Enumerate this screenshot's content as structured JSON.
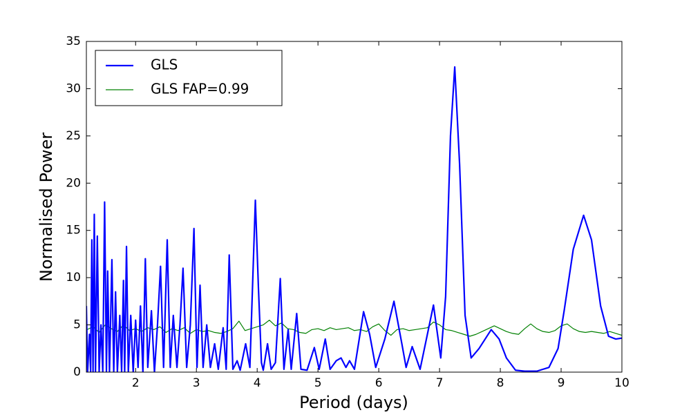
{
  "chart_data": {
    "type": "line",
    "xlabel": "Period (days)",
    "ylabel": "Normalised Power",
    "xlim": [
      1.19,
      10
    ],
    "xticks": [
      2,
      3,
      4,
      5,
      6,
      7,
      8,
      9,
      10
    ],
    "ylim": [
      0,
      35
    ],
    "yticks": [
      0,
      5,
      10,
      15,
      20,
      25,
      30,
      35
    ],
    "legend": "upper left",
    "series": [
      {
        "name": "GLS",
        "color": "#0000ff",
        "width": 2.2,
        "x": [
          1.19,
          1.21,
          1.24,
          1.26,
          1.28,
          1.3,
          1.32,
          1.34,
          1.37,
          1.4,
          1.43,
          1.46,
          1.49,
          1.52,
          1.54,
          1.57,
          1.61,
          1.64,
          1.67,
          1.7,
          1.74,
          1.77,
          1.8,
          1.82,
          1.85,
          1.88,
          1.92,
          1.96,
          2.0,
          2.04,
          2.08,
          2.12,
          2.16,
          2.2,
          2.26,
          2.31,
          2.36,
          2.41,
          2.46,
          2.52,
          2.57,
          2.62,
          2.68,
          2.73,
          2.78,
          2.84,
          2.9,
          2.96,
          3.01,
          3.06,
          3.11,
          3.17,
          3.23,
          3.3,
          3.36,
          3.44,
          3.49,
          3.54,
          3.6,
          3.67,
          3.72,
          3.81,
          3.88,
          3.97,
          4.02,
          4.07,
          4.1,
          4.17,
          4.23,
          4.3,
          4.38,
          4.44,
          4.51,
          4.56,
          4.65,
          4.72,
          4.82,
          4.94,
          5.02,
          5.12,
          5.2,
          5.3,
          5.38,
          5.46,
          5.52,
          5.6,
          5.75,
          5.85,
          5.95,
          6.1,
          6.25,
          6.38,
          6.45,
          6.55,
          6.68,
          6.8,
          6.9,
          7.02,
          7.1,
          7.18,
          7.25,
          7.33,
          7.42,
          7.52,
          7.65,
          7.85,
          7.98,
          8.1,
          8.25,
          8.4,
          8.6,
          8.8,
          8.95,
          9.05,
          9.2,
          9.37,
          9.5,
          9.65,
          9.78,
          9.9,
          10
        ],
        "values": [
          7,
          0,
          4,
          0,
          14,
          0,
          16.7,
          0,
          14.4,
          0,
          5,
          0,
          18,
          0,
          10.7,
          0,
          11.9,
          0,
          8.5,
          0,
          6,
          0,
          9.7,
          0,
          13.3,
          0,
          6,
          0,
          5.5,
          0.5,
          7,
          0,
          12,
          0.5,
          6.5,
          0,
          5,
          11.2,
          0.5,
          14,
          0.5,
          6,
          0.5,
          5,
          11,
          0.5,
          5,
          15.2,
          0.5,
          9.2,
          0.5,
          5,
          0.5,
          3,
          0.3,
          4.7,
          0.3,
          12.4,
          0.3,
          1.2,
          0.2,
          3,
          0.5,
          18.2,
          9,
          1,
          0.2,
          3,
          0.3,
          1,
          9.9,
          0.3,
          4.5,
          0.3,
          6.2,
          0.3,
          0.2,
          2.6,
          0.3,
          3.5,
          0.3,
          1.2,
          1.5,
          0.5,
          1.2,
          0.3,
          6.4,
          4,
          0.5,
          3.5,
          7.5,
          3,
          0.5,
          2.7,
          0.3,
          4,
          7.1,
          1.5,
          8,
          25,
          32.3,
          22,
          6,
          1.5,
          2.5,
          4.5,
          3.5,
          1.5,
          0.2,
          0.1,
          0.1,
          0.5,
          2.5,
          6.5,
          13,
          16.6,
          14,
          7,
          3.8,
          3.5,
          3.6
        ]
      },
      {
        "name": "GLS FAP=0.99",
        "color": "#008000",
        "width": 1.2,
        "x": [
          1.2,
          1.3,
          1.4,
          1.5,
          1.6,
          1.7,
          1.8,
          1.9,
          2.0,
          2.1,
          2.2,
          2.3,
          2.4,
          2.5,
          2.6,
          2.7,
          2.8,
          2.9,
          3.0,
          3.1,
          3.2,
          3.3,
          3.4,
          3.5,
          3.6,
          3.7,
          3.8,
          3.9,
          4.0,
          4.1,
          4.2,
          4.3,
          4.4,
          4.5,
          4.6,
          4.7,
          4.8,
          4.9,
          5.0,
          5.1,
          5.2,
          5.3,
          5.4,
          5.5,
          5.6,
          5.7,
          5.8,
          5.9,
          6.0,
          6.1,
          6.2,
          6.3,
          6.4,
          6.5,
          6.6,
          6.7,
          6.8,
          6.9,
          7.0,
          7.1,
          7.2,
          7.3,
          7.4,
          7.5,
          7.6,
          7.7,
          7.8,
          7.9,
          8.0,
          8.1,
          8.2,
          8.3,
          8.4,
          8.5,
          8.6,
          8.7,
          8.8,
          8.9,
          9.0,
          9.1,
          9.2,
          9.3,
          9.4,
          9.5,
          9.6,
          9.7,
          9.8,
          9.9,
          10.0
        ],
        "values": [
          4.5,
          4.8,
          4.2,
          5.0,
          4.6,
          4.3,
          5.0,
          4.4,
          4.6,
          4.3,
          4.7,
          4.5,
          4.8,
          4.2,
          4.6,
          4.4,
          4.7,
          4.1,
          4.5,
          4.3,
          4.4,
          4.2,
          4.1,
          4.3,
          4.6,
          5.4,
          4.4,
          4.6,
          4.8,
          5.0,
          5.5,
          4.9,
          5.2,
          4.6,
          4.5,
          4.2,
          4.1,
          4.5,
          4.6,
          4.4,
          4.7,
          4.5,
          4.6,
          4.7,
          4.4,
          4.5,
          4.3,
          4.8,
          5.1,
          4.4,
          3.9,
          4.5,
          4.6,
          4.4,
          4.5,
          4.6,
          4.7,
          5.3,
          5.0,
          4.5,
          4.4,
          4.2,
          4.0,
          3.8,
          4.0,
          4.3,
          4.6,
          4.9,
          4.6,
          4.3,
          4.1,
          4.0,
          4.6,
          5.1,
          4.6,
          4.3,
          4.2,
          4.4,
          4.9,
          5.1,
          4.6,
          4.3,
          4.2,
          4.3,
          4.2,
          4.1,
          4.3,
          4.1,
          3.9
        ]
      }
    ]
  }
}
